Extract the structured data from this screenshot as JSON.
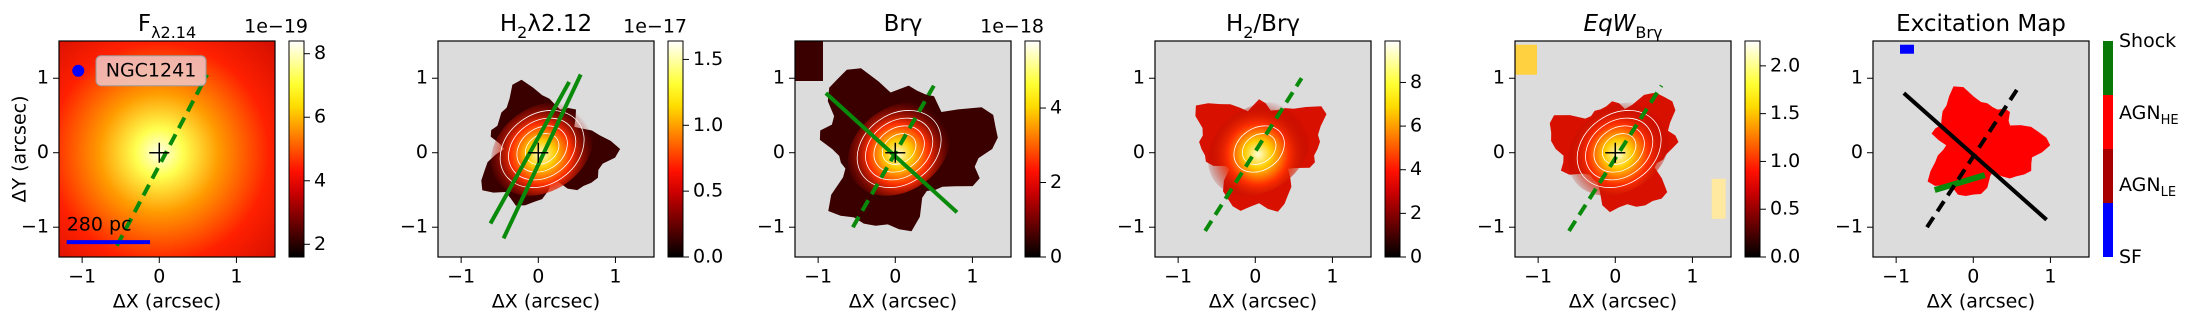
{
  "chart_data": [
    {
      "type": "heatmap",
      "title": [
        {
          "text": "F"
        },
        {
          "text": "λ2.14",
          "sub": true
        }
      ],
      "xlabel": "ΔX (arcsec)",
      "ylabel": "ΔY (arcsec)",
      "xlim": [
        -1.3,
        1.5
      ],
      "ylim": [
        -1.4,
        1.5
      ],
      "xticks": [
        {
          "value": -1,
          "label": "−1"
        },
        0,
        1
      ],
      "yticks": [
        {
          "value": -1,
          "label": "−1"
        },
        0,
        1
      ],
      "colormap": "hot",
      "clim": [
        1.6,
        8.4
      ],
      "cticks": [
        2,
        4,
        6,
        8
      ],
      "offset_label": "1e−19",
      "annotations": [
        "NGC1241",
        "280 pc"
      ]
    },
    {
      "type": "heatmap",
      "title": [
        {
          "text": "H"
        },
        {
          "text": "2",
          "sub": true
        },
        {
          "text": "λ2.12"
        }
      ],
      "xlabel": "ΔX (arcsec)",
      "xlim": [
        -1.3,
        1.5
      ],
      "ylim": [
        -1.4,
        1.5
      ],
      "xticks": [
        {
          "value": -1,
          "label": "−1"
        },
        0,
        1
      ],
      "yticks": [
        {
          "value": -1,
          "label": "−1"
        },
        0,
        1
      ],
      "colormap": "hot",
      "clim": [
        0,
        1.64
      ],
      "cticks": [
        {
          "value": 0,
          "label": "0.0"
        },
        0.5,
        {
          "value": 1,
          "label": "1.0"
        },
        1.5
      ],
      "offset_label": "1e−17"
    },
    {
      "type": "heatmap",
      "title": [
        {
          "text": "Brγ"
        }
      ],
      "xlabel": "ΔX (arcsec)",
      "xlim": [
        -1.3,
        1.5
      ],
      "ylim": [
        -1.4,
        1.5
      ],
      "xticks": [
        {
          "value": -1,
          "label": "−1"
        },
        0,
        1
      ],
      "yticks": [
        {
          "value": -1,
          "label": "−1"
        },
        0,
        1
      ],
      "colormap": "hot",
      "clim": [
        0,
        5.8
      ],
      "cticks": [
        0,
        2,
        4
      ],
      "offset_label": "1e−18"
    },
    {
      "type": "heatmap",
      "title": [
        {
          "text": "H"
        },
        {
          "text": "2",
          "sub": true
        },
        {
          "text": "/Brγ"
        }
      ],
      "xlabel": "ΔX (arcsec)",
      "xlim": [
        -1.3,
        1.5
      ],
      "ylim": [
        -1.4,
        1.5
      ],
      "xticks": [
        {
          "value": -1,
          "label": "−1"
        },
        0,
        1
      ],
      "yticks": [
        {
          "value": -1,
          "label": "−1"
        },
        0,
        1
      ],
      "colormap": "hot",
      "clim": [
        0,
        9.9
      ],
      "cticks": [
        0,
        2,
        4,
        6,
        8
      ]
    },
    {
      "type": "heatmap",
      "title": [
        {
          "text": "EqW",
          "italic": true
        },
        {
          "text": "Brγ",
          "sub": true
        }
      ],
      "xlabel": "ΔX (arcsec)",
      "xlim": [
        -1.3,
        1.5
      ],
      "ylim": [
        -1.4,
        1.5
      ],
      "xticks": [
        {
          "value": -1,
          "label": "−1"
        },
        0,
        1
      ],
      "yticks": [
        {
          "value": -1,
          "label": "−1"
        },
        0,
        1
      ],
      "colormap": "hot",
      "clim": [
        0,
        2.26
      ],
      "cticks": [
        {
          "value": 0,
          "label": "0.0"
        },
        0.5,
        {
          "value": 1,
          "label": "1.0"
        },
        1.5,
        {
          "value": 2,
          "label": "2.0"
        }
      ]
    },
    {
      "type": "category_map",
      "title": [
        {
          "text": "Excitation Map"
        }
      ],
      "xlabel": "ΔX (arcsec)",
      "xlim": [
        -1.3,
        1.5
      ],
      "ylim": [
        -1.4,
        1.5
      ],
      "xticks": [
        {
          "value": -1,
          "label": "−1"
        },
        0,
        1
      ],
      "yticks": [
        {
          "value": -1,
          "label": "−1"
        },
        0,
        1
      ],
      "categories": [
        {
          "label": [
            {
              "text": "Shock"
            }
          ],
          "color": "#087808"
        },
        {
          "label": [
            {
              "text": "AGN"
            },
            {
              "text": "HE",
              "sub": true
            }
          ],
          "color": "#ff0000"
        },
        {
          "label": [
            {
              "text": "AGN"
            },
            {
              "text": "LE",
              "sub": true
            }
          ],
          "color": "#a80000"
        },
        {
          "label": [
            {
              "text": "SF"
            }
          ],
          "color": "#0000ff"
        }
      ]
    }
  ]
}
